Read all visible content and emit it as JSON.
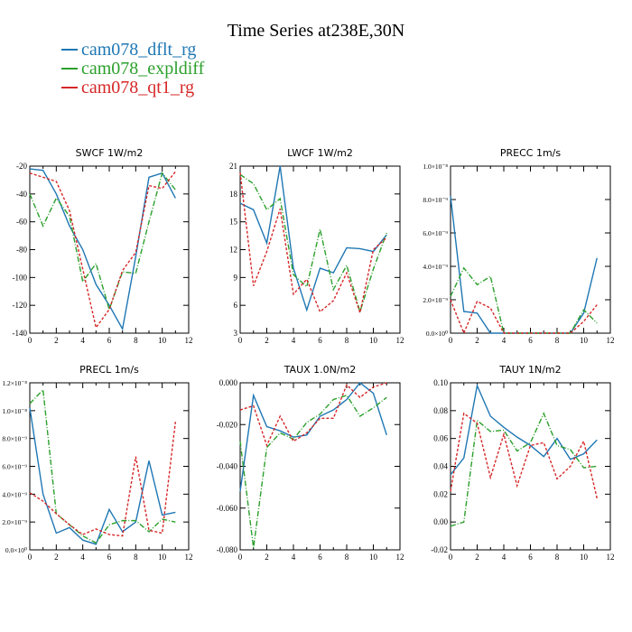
{
  "title": "Time Series at238E,30N",
  "legend": [
    {
      "label": "cam078_dflt_rg",
      "color": "#1f77b4"
    },
    {
      "label": "cam078_expldiff",
      "color": "#2ca02c"
    },
    {
      "label": "cam078_qt1_rg",
      "color": "#d62728"
    }
  ],
  "chart_data": [
    {
      "type": "line",
      "title": "SWCF",
      "units": "1W/m2",
      "x": [
        0,
        1,
        2,
        3,
        4,
        5,
        6,
        7,
        8,
        9,
        10,
        11
      ],
      "xlim": [
        0,
        12
      ],
      "ylim": [
        -140,
        -20
      ],
      "xticks": [
        0,
        2,
        4,
        6,
        8,
        10,
        12
      ],
      "yticks": [
        -140,
        -120,
        -100,
        -80,
        -60,
        -40,
        -20
      ],
      "yticklabels": [
        "-140",
        "-120",
        "-100",
        "-80",
        "-60",
        "-40",
        "-20"
      ],
      "series": [
        {
          "name": "cam078_dflt_rg",
          "values": [
            -22,
            -23,
            -40,
            -63,
            -80,
            -105,
            -120,
            -137,
            -85,
            -28,
            -25,
            -43
          ]
        },
        {
          "name": "cam078_expldiff",
          "values": [
            -40,
            -63,
            -43,
            -56,
            -103,
            -90,
            -123,
            -96,
            -97,
            -60,
            -25,
            -37
          ]
        },
        {
          "name": "cam078_qt1_rg",
          "values": [
            -25,
            -28,
            -31,
            -52,
            -94,
            -136,
            -123,
            -95,
            -82,
            -34,
            -36,
            -24
          ]
        }
      ]
    },
    {
      "type": "line",
      "title": "LWCF",
      "units": "1W/m2",
      "x": [
        0,
        1,
        2,
        3,
        4,
        5,
        6,
        7,
        8,
        9,
        10,
        11
      ],
      "xlim": [
        0,
        12
      ],
      "ylim": [
        3,
        21
      ],
      "xticks": [
        0,
        2,
        4,
        6,
        8,
        10,
        12
      ],
      "yticks": [
        3,
        6,
        9,
        12,
        15,
        18,
        21
      ],
      "yticklabels": [
        "3",
        "6",
        "9",
        "12",
        "15",
        "18",
        "21"
      ],
      "series": [
        {
          "name": "cam078_dflt_rg",
          "values": [
            17,
            16.3,
            12.7,
            21,
            10,
            5.5,
            10,
            9.5,
            12.2,
            12.1,
            11.8,
            13.6
          ]
        },
        {
          "name": "cam078_expldiff",
          "values": [
            20.1,
            19.1,
            16.3,
            17.5,
            9.3,
            8,
            14.2,
            7.7,
            10.3,
            5.3,
            9.9,
            13.8
          ]
        },
        {
          "name": "cam078_qt1_rg",
          "values": [
            20.3,
            8.1,
            11.8,
            16.4,
            7.2,
            8.8,
            5.3,
            6.5,
            9.5,
            5.2,
            12,
            13.3
          ]
        }
      ]
    },
    {
      "type": "line",
      "title": "PRECC",
      "units": "1m/s",
      "x": [
        0,
        1,
        2,
        3,
        4,
        5,
        6,
        7,
        8,
        9,
        10,
        11
      ],
      "xlim": [
        0,
        12
      ],
      "ylim": [
        0,
        1e-08
      ],
      "xticks": [
        0,
        2,
        4,
        6,
        8,
        10,
        12
      ],
      "yticks": [
        0,
        2e-09,
        4e-09,
        6e-09,
        8e-09,
        1e-08
      ],
      "yticklabels": [
        "0.0×10⁰",
        "2.0×10⁻⁹",
        "4.0×10⁻⁹",
        "6.0×10⁻⁹",
        "8.0×10⁻⁹",
        "1.0×10⁻⁸"
      ],
      "series": [
        {
          "name": "cam078_dflt_rg",
          "values": [
            8.2e-09,
            1.3e-09,
            1.2e-09,
            0,
            0,
            0,
            0,
            0,
            0,
            0,
            1.2e-09,
            4.5e-09
          ]
        },
        {
          "name": "cam078_expldiff",
          "values": [
            2.2e-09,
            3.9e-09,
            2.9e-09,
            3.4e-09,
            0,
            0,
            0,
            0,
            0,
            0,
            1.4e-09,
            6e-10
          ]
        },
        {
          "name": "cam078_qt1_rg",
          "values": [
            2e-09,
            0,
            1.9e-09,
            1.5e-09,
            0,
            0,
            0,
            0,
            0,
            0,
            7e-10,
            1.7e-09
          ]
        }
      ]
    },
    {
      "type": "line",
      "title": "PRECL",
      "units": "1m/s",
      "x": [
        0,
        1,
        2,
        3,
        4,
        5,
        6,
        7,
        8,
        9,
        10,
        11
      ],
      "xlim": [
        0,
        12
      ],
      "ylim": [
        0,
        1.2e-08
      ],
      "xticks": [
        0,
        2,
        4,
        6,
        8,
        10,
        12
      ],
      "yticks": [
        0,
        2e-09,
        4e-09,
        6e-09,
        8e-09,
        1e-08,
        1.2e-08
      ],
      "yticklabels": [
        "0.0×10⁰",
        "2.0×10⁻⁹",
        "4.0×10⁻⁹",
        "6.0×10⁻⁹",
        "8.0×10⁻⁹",
        "1.0×10⁻⁸",
        "1.2×10⁻⁸"
      ],
      "series": [
        {
          "name": "cam078_dflt_rg",
          "values": [
            1.02e-08,
            4e-09,
            1.2e-09,
            1.6e-09,
            7e-10,
            4e-10,
            2.9e-09,
            1.3e-09,
            2e-09,
            6.4e-09,
            2.5e-09,
            2.7e-09
          ]
        },
        {
          "name": "cam078_expldiff",
          "values": [
            1.05e-08,
            1.15e-08,
            2.6e-09,
            1.8e-09,
            1e-09,
            5e-10,
            1.8e-09,
            2.1e-09,
            2.1e-09,
            1.3e-09,
            2.2e-09,
            2e-09
          ]
        },
        {
          "name": "cam078_qt1_rg",
          "values": [
            4.1e-09,
            3.5e-09,
            2.6e-09,
            1.8e-09,
            1.1e-09,
            1.5e-09,
            1.1e-09,
            1e-09,
            6.7e-09,
            1.4e-09,
            1.2e-09,
            9.2e-09
          ]
        }
      ]
    },
    {
      "type": "line",
      "title": "TAUX",
      "units": "1.0N/m2",
      "x": [
        0,
        1,
        2,
        3,
        4,
        5,
        6,
        7,
        8,
        9,
        10,
        11
      ],
      "xlim": [
        0,
        12
      ],
      "ylim": [
        -0.08,
        0.0
      ],
      "xticks": [
        0,
        2,
        4,
        6,
        8,
        10,
        12
      ],
      "yticks": [
        -0.08,
        -0.06,
        -0.04,
        -0.02,
        0.0
      ],
      "yticklabels": [
        "-0.080",
        "-0.060",
        "-0.040",
        "-0.020",
        "0.000"
      ],
      "series": [
        {
          "name": "cam078_dflt_rg",
          "values": [
            -0.052,
            -0.006,
            -0.021,
            -0.023,
            -0.026,
            -0.025,
            -0.016,
            -0.013,
            -0.008,
            0.0,
            -0.005,
            -0.025
          ]
        },
        {
          "name": "cam078_expldiff",
          "values": [
            -0.028,
            -0.079,
            -0.031,
            -0.024,
            -0.027,
            -0.019,
            -0.015,
            -0.008,
            -0.006,
            -0.016,
            -0.012,
            -0.007
          ]
        },
        {
          "name": "cam078_qt1_rg",
          "values": [
            -0.013,
            -0.011,
            -0.03,
            -0.016,
            -0.028,
            -0.024,
            -0.017,
            -0.017,
            -0.001,
            -0.007,
            -0.002,
            0.0
          ]
        }
      ]
    },
    {
      "type": "line",
      "title": "TAUY",
      "units": "1N/m2",
      "x": [
        0,
        1,
        2,
        3,
        4,
        5,
        6,
        7,
        8,
        9,
        10,
        11
      ],
      "xlim": [
        0,
        12
      ],
      "ylim": [
        -0.02,
        0.1
      ],
      "xticks": [
        0,
        2,
        4,
        6,
        8,
        10,
        12
      ],
      "yticks": [
        -0.02,
        0.0,
        0.02,
        0.04,
        0.06,
        0.08,
        0.1
      ],
      "yticklabels": [
        "-0.02",
        "0.00",
        "0.02",
        "0.04",
        "0.06",
        "0.08",
        "0.10"
      ],
      "series": [
        {
          "name": "cam078_dflt_rg",
          "values": [
            0.034,
            0.046,
            0.098,
            0.076,
            0.068,
            0.061,
            0.055,
            0.047,
            0.06,
            0.045,
            0.049,
            0.059
          ]
        },
        {
          "name": "cam078_expldiff",
          "values": [
            -0.003,
            0.0,
            0.073,
            0.065,
            0.066,
            0.051,
            0.057,
            0.078,
            0.055,
            0.052,
            0.039,
            0.04
          ]
        },
        {
          "name": "cam078_qt1_rg",
          "values": [
            0.022,
            0.078,
            0.071,
            0.032,
            0.063,
            0.026,
            0.055,
            0.057,
            0.031,
            0.04,
            0.058,
            0.017
          ]
        }
      ]
    }
  ]
}
